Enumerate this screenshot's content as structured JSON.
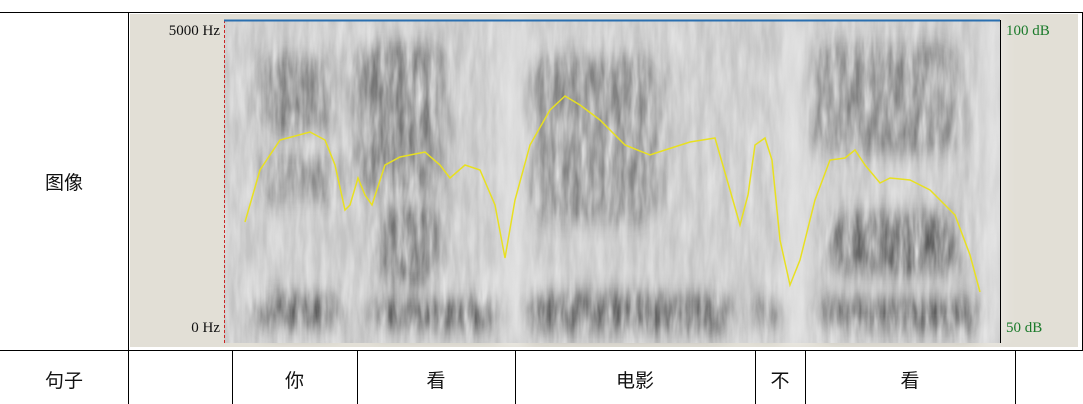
{
  "rows": [
    {
      "label": "图像",
      "panel": {
        "top_left": "5000 Hz",
        "bottom_left": "0 Hz",
        "top_right": "100 dB",
        "bottom_right": "50 dB"
      }
    },
    {
      "label": "句子",
      "segments": [
        "你",
        "看",
        "电影",
        "不",
        "看"
      ]
    }
  ]
}
